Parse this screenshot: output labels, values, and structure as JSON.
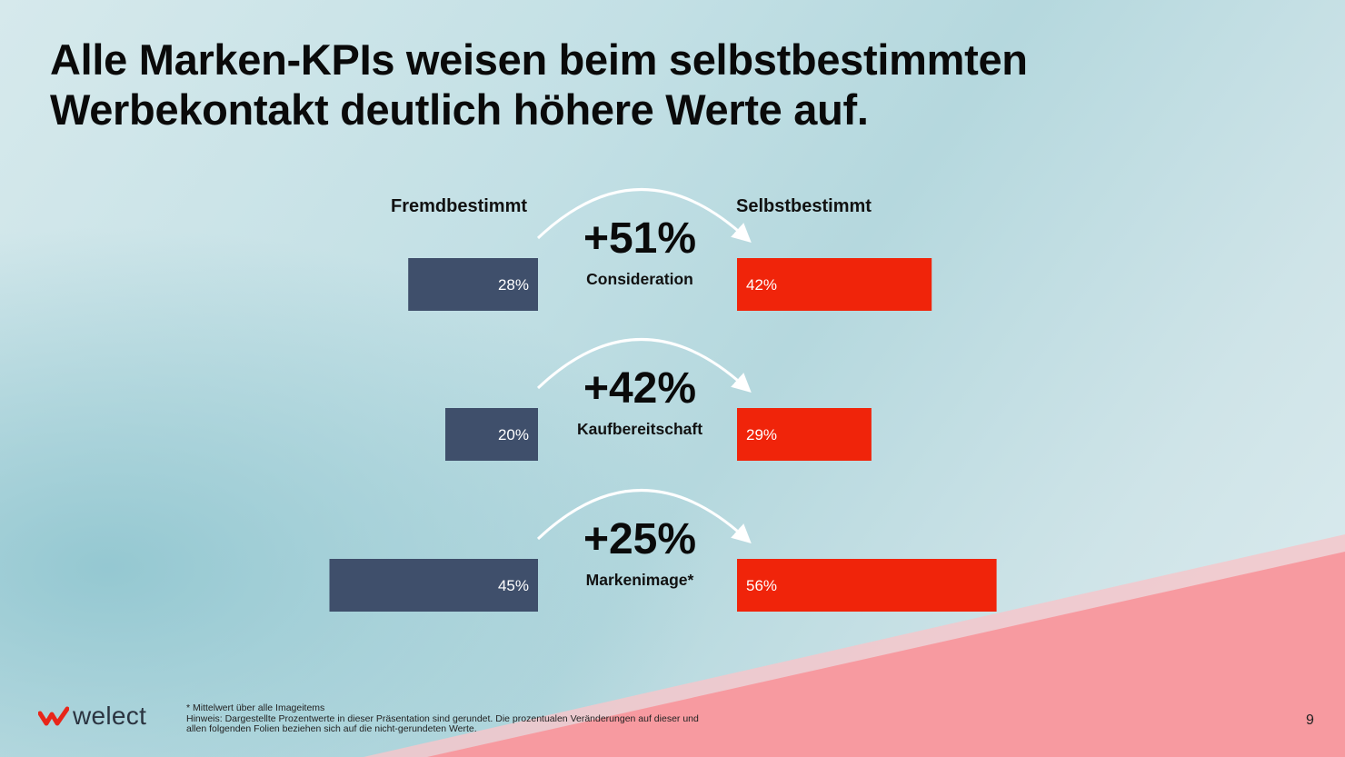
{
  "title_lines": [
    "Alle Marken-KPIs weisen beim selbstbestimmten",
    "Werbekontakt deutlich höhere Werte auf."
  ],
  "columns": {
    "left": "Fremdbestimmt",
    "right": "Selbstbestimmt"
  },
  "colors": {
    "left_bar": "#3f4f6b",
    "right_bar": "#f0240a",
    "accent_bg": "#f79aa0"
  },
  "chart_data": {
    "type": "bar",
    "categories": [
      "Consideration",
      "Kaufbereitschaft",
      "Markenimage*"
    ],
    "series": [
      {
        "name": "Fremdbestimmt",
        "values": [
          28,
          20,
          45
        ],
        "labels": [
          "28%",
          "20%",
          "45%"
        ]
      },
      {
        "name": "Selbstbestimmt",
        "values": [
          42,
          29,
          56
        ],
        "labels": [
          "42%",
          "29%",
          "56%"
        ]
      }
    ],
    "changes": [
      "+51%",
      "+42%",
      "+25%"
    ]
  },
  "footnotes": [
    "* Mittelwert über alle Imageitems",
    "Hinweis: Dargestellte Prozentwerte in dieser Präsentation sind gerundet. Die prozentualen Veränderungen auf dieser und",
    "allen folgenden Folien beziehen sich auf die nicht-gerundeten Werte."
  ],
  "logo": {
    "text": "welect"
  },
  "page_number": "9"
}
